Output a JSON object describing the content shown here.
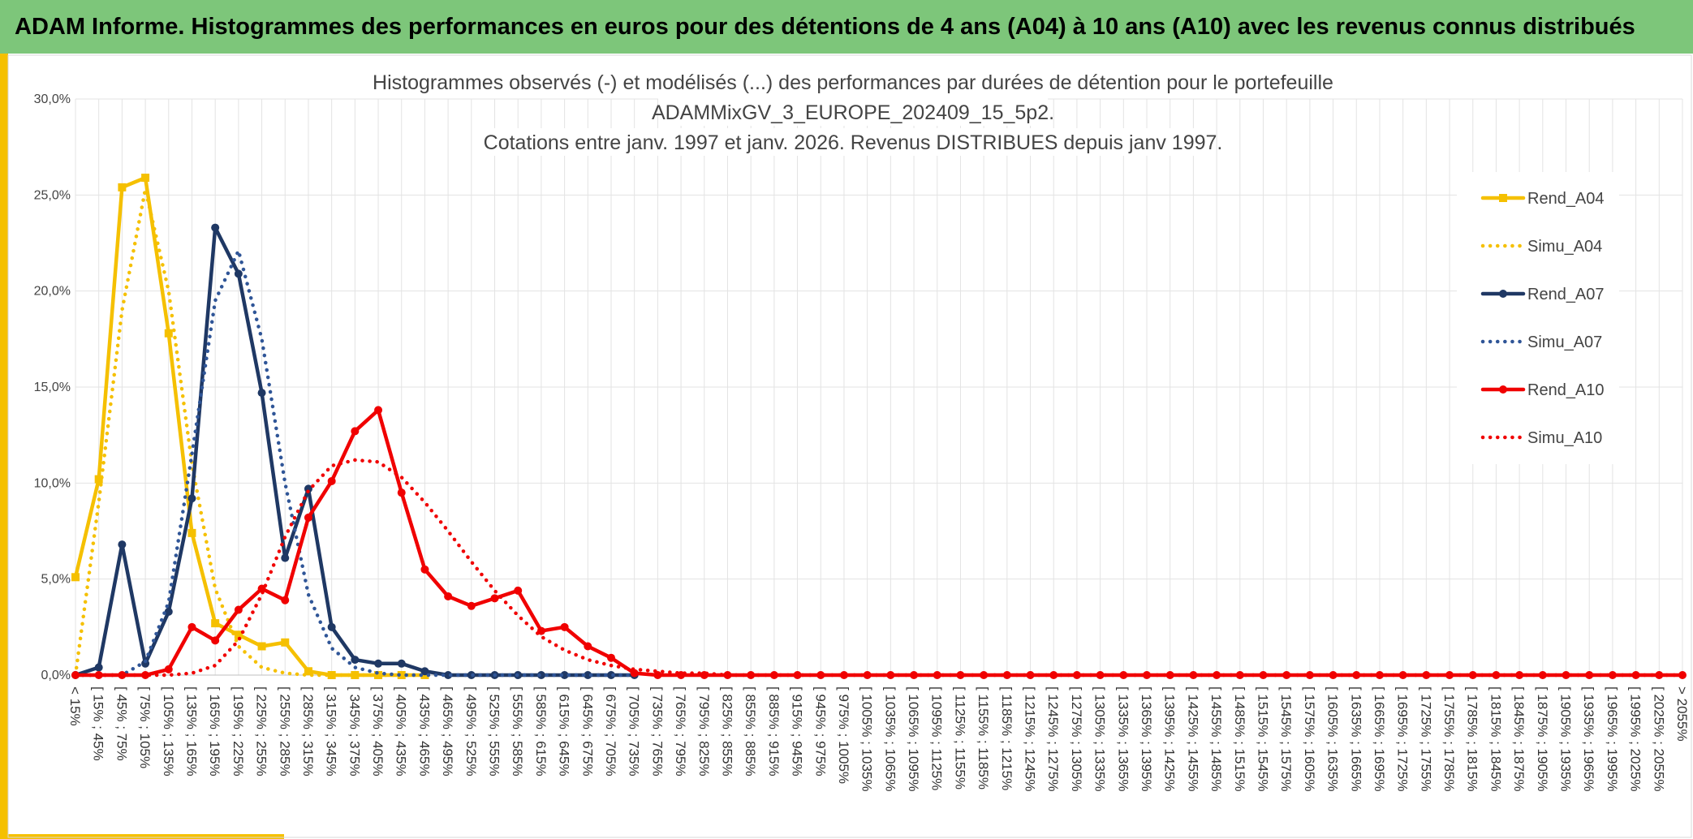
{
  "header": "ADAM Informe. Histogrammes des performances en euros pour des détentions de 4 ans (A04) à 10 ans (A10) avec les revenus connus distribués",
  "chart_data": {
    "type": "line",
    "title": [
      "Histogrammes observés (-) et modélisés (...) des performances par durées de détention pour le portefeuille",
      "ADAMMixGV_3_EUROPE_202409_15_5p2.",
      "Cotations entre janv. 1997 et janv. 2026. Revenus DISTRIBUES depuis janv 1997."
    ],
    "categories": [
      "< 15%",
      "[ 15% ; 45%",
      "[ 45% ; 75%",
      "[ 75% ; 105%",
      "[ 105% ; 135%",
      "[ 135% ; 165%",
      "[ 165% ; 195%",
      "[ 195% ; 225%",
      "[ 225% ; 255%",
      "[ 255% ; 285%",
      "[ 285% ; 315%",
      "[ 315% ; 345%",
      "[ 345% ; 375%",
      "[ 375% ; 405%",
      "[ 405% ; 435%",
      "[ 435% ; 465%",
      "[ 465% ; 495%",
      "[ 495% ; 525%",
      "[ 525% ; 555%",
      "[ 555% ; 585%",
      "[ 585% ; 615%",
      "[ 615% ; 645%",
      "[ 645% ; 675%",
      "[ 675% ; 705%",
      "[ 705% ; 735%",
      "[ 735% ; 765%",
      "[ 765% ; 795%",
      "[ 795% ; 825%",
      "[ 825% ; 855%",
      "[ 855% ; 885%",
      "[ 885% ; 915%",
      "[ 915% ; 945%",
      "[ 945% ; 975%",
      "[ 975% ; 1005%",
      "[ 1005% ; 1035%",
      "[ 1035% ; 1065%",
      "[ 1065% ; 1095%",
      "[ 1095% ; 1125%",
      "[ 1125% ; 1155%",
      "[ 1155% ; 1185%",
      "[ 1185% ; 1215%",
      "[ 1215% ; 1245%",
      "[ 1245% ; 1275%",
      "[ 1275% ; 1305%",
      "[ 1305% ; 1335%",
      "[ 1335% ; 1365%",
      "[ 1365% ; 1395%",
      "[ 1395% ; 1425%",
      "[ 1425% ; 1455%",
      "[ 1455% ; 1485%",
      "[ 1485% ; 1515%",
      "[ 1515% ; 1545%",
      "[ 1545% ; 1575%",
      "[ 1575% ; 1605%",
      "[ 1605% ; 1635%",
      "[ 1635% ; 1665%",
      "[ 1665% ; 1695%",
      "[ 1695% ; 1725%",
      "[ 1725% ; 1755%",
      "[ 1755% ; 1785%",
      "[ 1785% ; 1815%",
      "[ 1815% ; 1845%",
      "[ 1845% ; 1875%",
      "[ 1875% ; 1905%",
      "[ 1905% ; 1935%",
      "[ 1935% ; 1965%",
      "[ 1965% ; 1995%",
      "[ 1995% ; 2025%",
      "[ 2025% ; 2055%",
      "> 2055%"
    ],
    "series": [
      {
        "name": "Rend_A04",
        "color": "#f5c000",
        "marker": "square",
        "values": [
          5.1,
          10.2,
          25.4,
          25.9,
          17.8,
          7.4,
          2.7,
          2.1,
          1.5,
          1.7,
          0.2,
          0,
          0,
          0,
          0,
          0,
          null,
          null,
          null,
          null,
          null,
          null,
          null,
          null,
          null,
          null,
          null,
          null,
          null,
          null,
          null,
          null,
          null,
          null,
          null,
          null,
          null,
          null,
          null,
          null,
          null,
          null,
          null,
          null,
          null,
          null,
          null,
          null,
          null,
          null,
          null,
          null,
          null,
          null,
          null,
          null,
          null,
          null,
          null,
          null,
          null,
          null,
          null,
          null,
          null,
          null,
          null,
          null,
          null,
          null
        ]
      },
      {
        "name": "Simu_A04",
        "color": "#f5c000",
        "dash": true,
        "values": [
          0,
          9,
          19,
          25.3,
          20,
          11,
          4.5,
          1.5,
          0.4,
          0.1,
          0,
          0,
          0,
          0,
          0,
          0,
          null,
          null,
          null,
          null,
          null,
          null,
          null,
          null,
          null,
          null,
          null,
          null,
          null,
          null,
          null,
          null,
          null,
          null,
          null,
          null,
          null,
          null,
          null,
          null,
          null,
          null,
          null,
          null,
          null,
          null,
          null,
          null,
          null,
          null,
          null,
          null,
          null,
          null,
          null,
          null,
          null,
          null,
          null,
          null,
          null,
          null,
          null,
          null,
          null,
          null,
          null,
          null,
          null,
          null
        ]
      },
      {
        "name": "Rend_A07",
        "color": "#1f3864",
        "marker": "circle",
        "values": [
          0,
          0.4,
          6.8,
          0.6,
          3.3,
          9.2,
          23.3,
          20.9,
          14.7,
          6.1,
          9.7,
          2.5,
          0.8,
          0.6,
          0.6,
          0.2,
          0,
          0,
          0,
          0,
          0,
          0,
          0,
          0,
          0,
          null,
          null,
          null,
          null,
          null,
          null,
          null,
          null,
          null,
          null,
          null,
          null,
          null,
          null,
          null,
          null,
          null,
          null,
          null,
          null,
          null,
          null,
          null,
          null,
          null,
          null,
          null,
          null,
          null,
          null,
          null,
          null,
          null,
          null,
          null,
          null,
          null,
          null,
          null,
          null,
          null,
          null,
          null,
          null,
          null
        ]
      },
      {
        "name": "Simu_A07",
        "color": "#2f5597",
        "dash": true,
        "values": [
          0,
          0,
          0,
          0.7,
          3.8,
          11.5,
          19.5,
          22.1,
          17.5,
          10,
          4.2,
          1.4,
          0.4,
          0.1,
          0,
          0,
          0,
          0,
          0,
          0,
          0,
          0,
          0,
          0,
          0,
          null,
          null,
          null,
          null,
          null,
          null,
          null,
          null,
          null,
          null,
          null,
          null,
          null,
          null,
          null,
          null,
          null,
          null,
          null,
          null,
          null,
          null,
          null,
          null,
          null,
          null,
          null,
          null,
          null,
          null,
          null,
          null,
          null,
          null,
          null,
          null,
          null,
          null,
          null,
          null,
          null,
          null,
          null,
          null,
          null
        ]
      },
      {
        "name": "Rend_A10",
        "color": "#f00000",
        "marker": "circle",
        "values": [
          0,
          0,
          0,
          0,
          0.3,
          2.5,
          1.8,
          3.4,
          4.5,
          3.9,
          8.2,
          10.1,
          12.7,
          13.8,
          9.5,
          5.5,
          4.1,
          3.6,
          4.0,
          4.4,
          2.3,
          2.5,
          1.5,
          0.9,
          0.1,
          0,
          0,
          0,
          0,
          0,
          0,
          0,
          0,
          0,
          0,
          0,
          0,
          0,
          0,
          0,
          0,
          0,
          0,
          0,
          0,
          0,
          0,
          0,
          0,
          0,
          0,
          0,
          0,
          0,
          0,
          0,
          0,
          0,
          0,
          0,
          0,
          0,
          0,
          0,
          0,
          0,
          0,
          0,
          0,
          0
        ]
      },
      {
        "name": "Simu_A10",
        "color": "#f00000",
        "dash": true,
        "values": [
          0,
          0,
          0,
          0,
          0,
          0.1,
          0.5,
          1.8,
          4.2,
          7.2,
          9.6,
          10.9,
          11.2,
          11.1,
          10.3,
          9.0,
          7.5,
          5.9,
          4.4,
          3.1,
          2.0,
          1.3,
          0.8,
          0.5,
          0.3,
          0.2,
          0.1,
          0.1,
          0,
          0,
          0,
          0,
          0,
          0,
          0,
          0,
          0,
          0,
          0,
          0,
          0,
          0,
          0,
          0,
          0,
          0,
          0,
          0,
          0,
          0,
          0,
          0,
          0,
          0,
          0,
          0,
          0,
          0,
          0,
          0,
          0,
          0,
          0,
          0,
          0,
          0,
          0,
          0,
          0,
          0
        ]
      }
    ],
    "ylim": [
      0,
      30
    ],
    "yticks": [
      {
        "value": 0,
        "label": "0,0%"
      },
      {
        "value": 5,
        "label": "5,0%"
      },
      {
        "value": 10,
        "label": "10,0%"
      },
      {
        "value": 15,
        "label": "15,0%"
      },
      {
        "value": 20,
        "label": "20,0%"
      },
      {
        "value": 25,
        "label": "25,0%"
      },
      {
        "value": 30,
        "label": "30,0%"
      }
    ],
    "grid": true,
    "legend": "right"
  }
}
